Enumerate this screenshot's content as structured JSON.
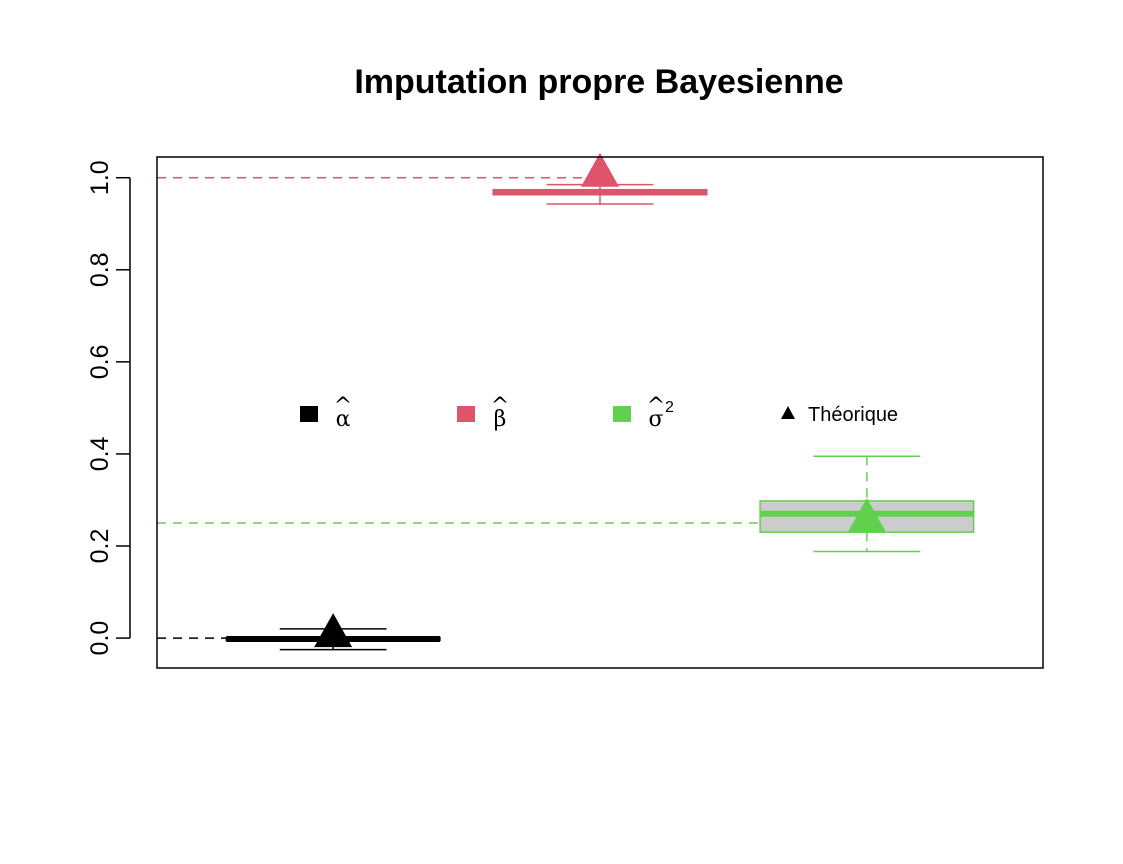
{
  "chart_data": {
    "type": "boxplot",
    "title": "Imputation propre Bayesienne",
    "xlabel": "",
    "ylabel": "",
    "ylim": [
      -0.065,
      1.045
    ],
    "y_ticks": [
      0.0,
      0.2,
      0.4,
      0.6,
      0.8,
      1.0
    ],
    "y_tick_labels": [
      "0.0",
      "0.2",
      "0.4",
      "0.6",
      "0.8",
      "1.0"
    ],
    "grid": false,
    "legend_position": "center",
    "series": [
      {
        "symbol": "α",
        "hat": "^",
        "superscript": "",
        "color": "#000000",
        "fill": "#000000",
        "stats": {
          "min": -0.025,
          "q1": -0.005,
          "median": -0.002,
          "q3": 0.001,
          "max": 0.02
        },
        "theoretical": 0.0
      },
      {
        "symbol": "β",
        "hat": "^",
        "superscript": "",
        "color": "#DF536B",
        "fill": "#DF536B",
        "stats": {
          "min": 0.943,
          "q1": 0.963,
          "median": 0.968,
          "q3": 0.974,
          "max": 0.985
        },
        "theoretical": 1.0
      },
      {
        "symbol": "σ",
        "hat": "^",
        "superscript": "2",
        "color": "#61D04F",
        "fill": "#CCCCCC",
        "stats": {
          "min": 0.188,
          "q1": 0.23,
          "median": 0.27,
          "q3": 0.298,
          "max": 0.395
        },
        "theoretical": 0.25
      }
    ],
    "legend": {
      "theoretical_label": "Théorique",
      "theoretical_marker": "triangle"
    }
  }
}
